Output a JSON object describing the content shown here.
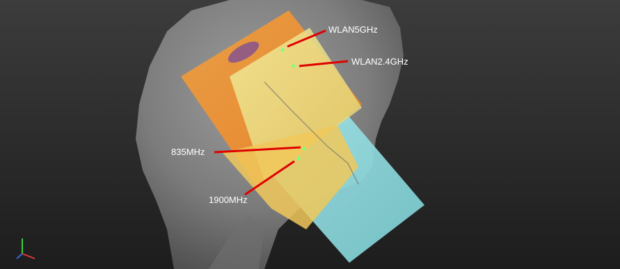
{
  "labels": {
    "wlan5": "WLAN5GHz",
    "wlan24": "WLAN2.4GHz",
    "mhz835": "835MHz",
    "mhz1900": "1900MHz"
  },
  "colors": {
    "background_top": "#3a3a3a",
    "background_bottom": "#1f1f1f",
    "head": "#9a9a9a",
    "pointer_line": "#e00000",
    "marker_dot": "#7cff7c",
    "orange_plate": "#f08a20",
    "yellow_plate": "#e9e07a",
    "cyan_plate": "#8fd8dc"
  }
}
